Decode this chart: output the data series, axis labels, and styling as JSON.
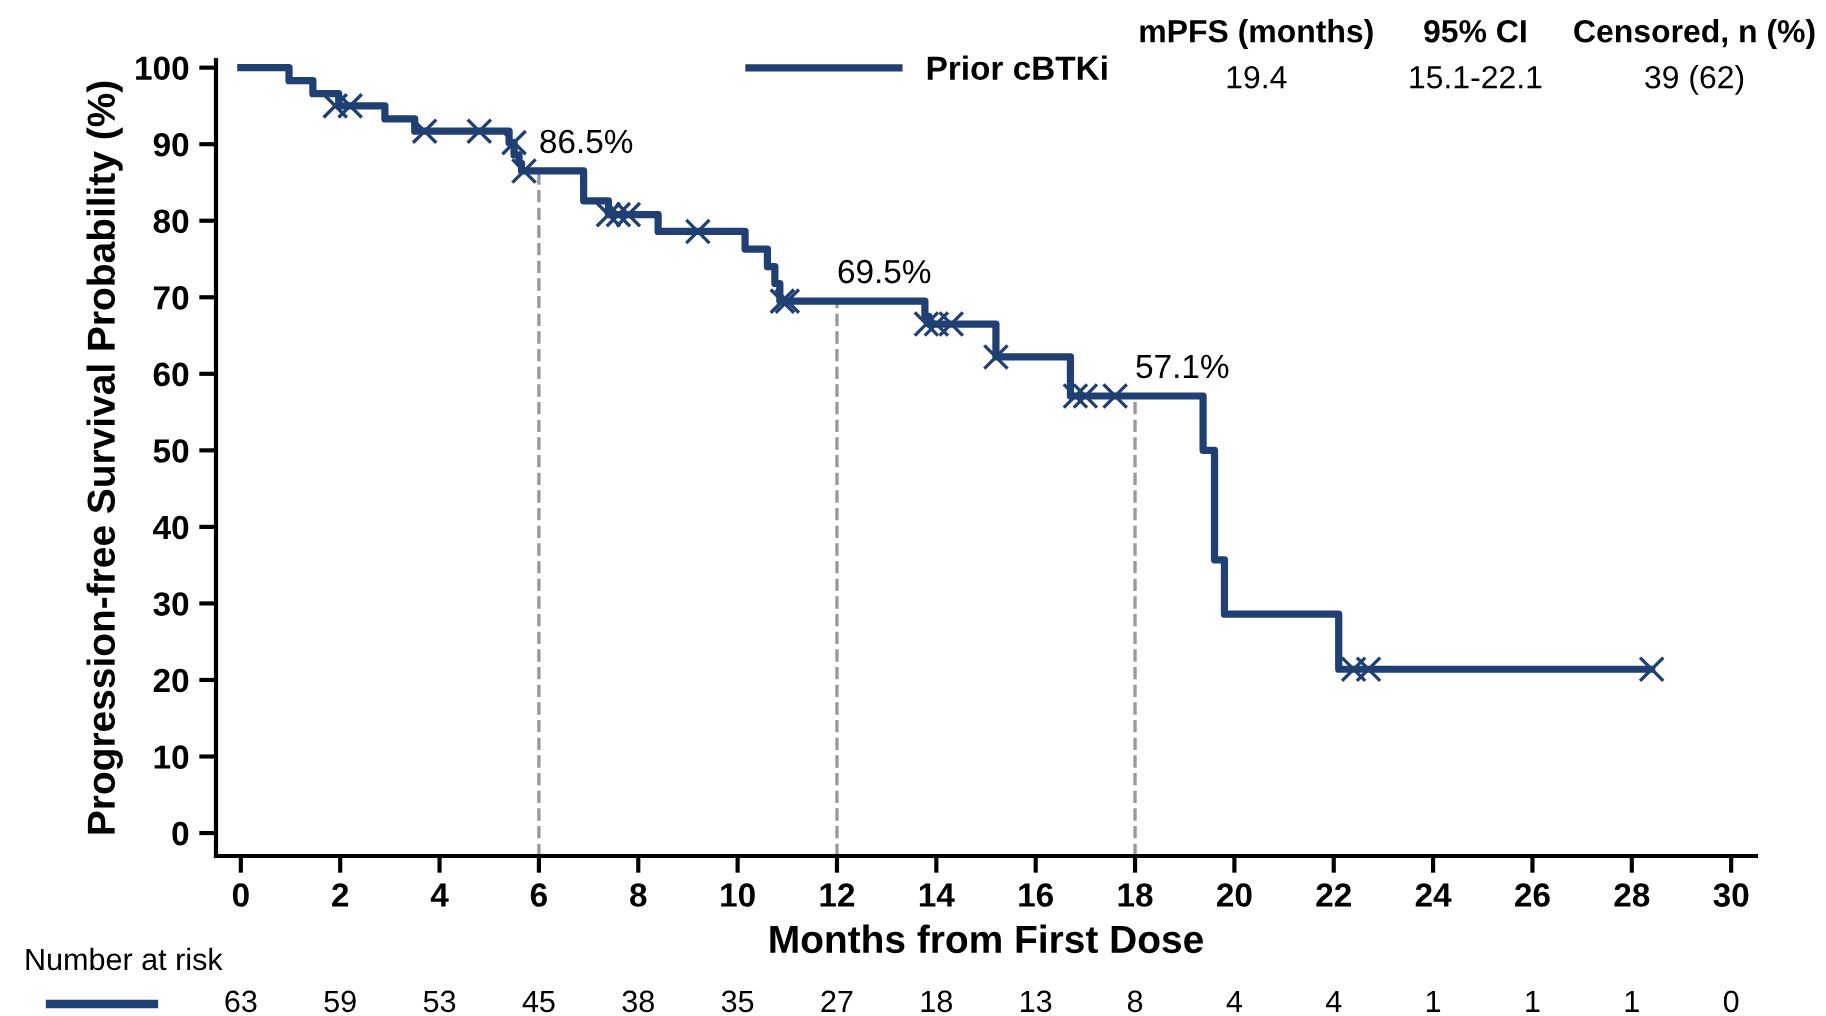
{
  "chart_data": [
    {
      "type": "step",
      "xlabel": "Months from First Dose",
      "ylabel": "Progression-free Survival Probability (%)",
      "xlim": [
        -0.5,
        30.5
      ],
      "xticks": [
        0,
        2,
        4,
        6,
        8,
        10,
        12,
        14,
        16,
        18,
        20,
        22,
        24,
        26,
        28,
        30
      ],
      "ylim": [
        -3,
        101
      ],
      "yticks": [
        0,
        10,
        20,
        30,
        40,
        50,
        60,
        70,
        80,
        90,
        100
      ],
      "grid": false,
      "legend": "top right",
      "line_style": "solid",
      "series": [
        {
          "name": "Prior cBTKi",
          "color": "#203f73",
          "marker": "none",
          "x": [
            0,
            0.97,
            1.45,
            1.97,
            2.9,
            3.5,
            5.4,
            5.5,
            5.6,
            5.65,
            6.9,
            7.4,
            8.4,
            10.15,
            10.6,
            10.75,
            10.85,
            13.77,
            13.85,
            15.2,
            16.7,
            19.37,
            19.6,
            19.8,
            22.1,
            28.4
          ],
          "values": [
            100,
            98.3,
            96.6,
            95,
            93.3,
            91.7,
            90.2,
            88.6,
            87.5,
            86.5,
            82.6,
            80.8,
            78.6,
            76.3,
            74,
            71.8,
            69.5,
            67.5,
            66.5,
            62.2,
            57.1,
            50,
            35.7,
            28.6,
            21.4,
            21.4
          ]
        },
        {
          "color": "#203f73",
          "type": "scatter",
          "marker": "cross",
          "x": [
            1.9,
            2.2,
            3.7,
            4.8,
            5.5,
            5.7,
            7.4,
            7.6,
            7.8,
            9.2,
            10.9,
            11.0,
            13.8,
            14.0,
            14.3,
            15.2,
            16.8,
            17.0,
            17.6,
            22.4,
            22.7,
            28.4
          ],
          "values": [
            95,
            95,
            91.7,
            91.7,
            90.2,
            86.5,
            80.8,
            80.8,
            80.8,
            78.6,
            69.5,
            69.5,
            66.5,
            66.5,
            66.5,
            62.2,
            57.1,
            57.1,
            57.1,
            21.4,
            21.4,
            21.4
          ]
        }
      ],
      "ref_lines": [
        {
          "axis": "x",
          "value": 6,
          "color": "#999999",
          "line_style": "dashed"
        },
        {
          "axis": "x",
          "value": 12,
          "color": "#999999",
          "line_style": "dashed"
        },
        {
          "axis": "x",
          "value": 18,
          "color": "#999999",
          "line_style": "dashed"
        }
      ],
      "annotations": [
        {
          "text": "86.5%",
          "x": 6,
          "y": 86.5
        },
        {
          "text": "69.5%",
          "x": 12,
          "y": 69.5
        },
        {
          "text": "57.1%",
          "x": 18,
          "y": 57.1
        },
        "mPFS (months)",
        "95% CI",
        "Censored, n (%)",
        "19.4",
        "15.1-22.1",
        "39 (62)",
        "Number at risk",
        "63",
        "59",
        "53",
        "45",
        "38",
        "35",
        "27",
        "18",
        "13",
        "8",
        "4",
        "4",
        "1",
        "1",
        "1",
        "0"
      ]
    }
  ]
}
